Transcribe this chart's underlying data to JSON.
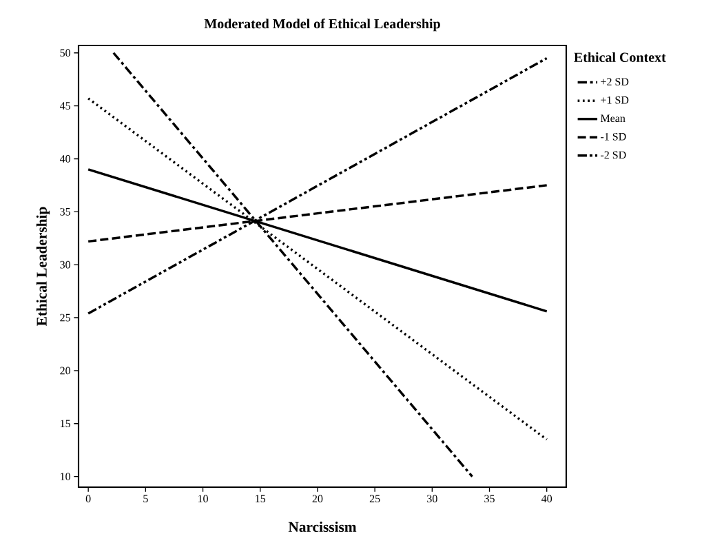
{
  "chart_data": {
    "type": "line",
    "title": "Moderated Model of Ethical Leadership",
    "xlabel": "Narcissism",
    "ylabel": "Ethical Leadership",
    "legend_title": "Ethical Context",
    "x": [
      0,
      40
    ],
    "series": [
      {
        "name": "+2 SD",
        "color": "#000000",
        "line_style": "dashdot",
        "x": [
          2.2,
          33.5
        ],
        "values": [
          50,
          10
        ]
      },
      {
        "name": "+1 SD",
        "color": "#000000",
        "line_style": "dotted",
        "values": [
          45.7,
          13.5
        ]
      },
      {
        "name": "Mean",
        "color": "#000000",
        "line_style": "solid",
        "values": [
          39,
          25.6
        ]
      },
      {
        "name": "-1 SD",
        "color": "#000000",
        "line_style": "dashed",
        "values": [
          32.2,
          37.5
        ]
      },
      {
        "name": "-2 SD",
        "color": "#000000",
        "line_style": "dashdotdot",
        "values": [
          25.4,
          49.5
        ]
      }
    ],
    "xlim": [
      -0.85,
      41.7
    ],
    "ylim": [
      9.0,
      50.7
    ],
    "xticks": [
      0,
      5,
      10,
      15,
      20,
      25,
      30,
      35,
      40
    ],
    "yticks": [
      10,
      15,
      20,
      25,
      30,
      35,
      40,
      45,
      50
    ],
    "legend": "right",
    "grid": false,
    "marker": "none"
  }
}
